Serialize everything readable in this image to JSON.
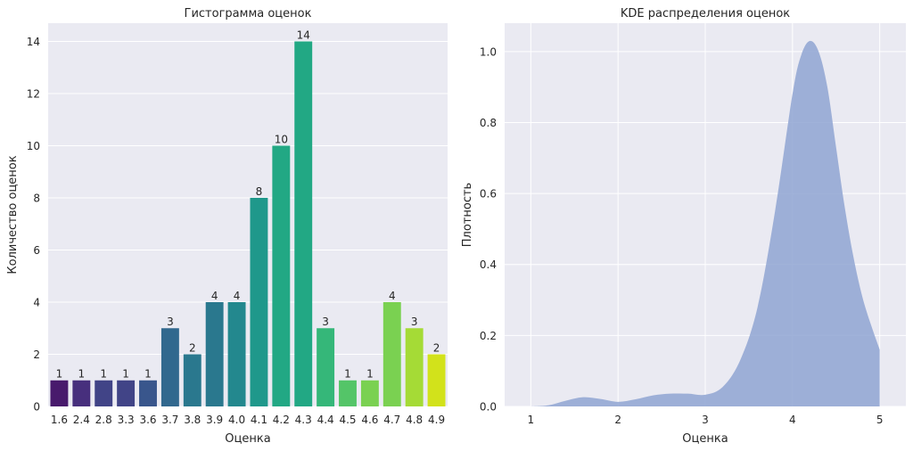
{
  "chart_data": [
    {
      "type": "bar",
      "title": "Гистограмма оценок",
      "xlabel": "Оценка",
      "ylabel": "Количество оценок",
      "categories": [
        "1.6",
        "2.4",
        "2.8",
        "3.3",
        "3.6",
        "3.7",
        "3.8",
        "3.9",
        "4.0",
        "4.1",
        "4.2",
        "4.3",
        "4.4",
        "4.5",
        "4.6",
        "4.7",
        "4.8",
        "4.9"
      ],
      "values": [
        1,
        1,
        1,
        1,
        1,
        3,
        2,
        4,
        4,
        8,
        10,
        14,
        3,
        1,
        1,
        4,
        3,
        2
      ],
      "data_labels": [
        "1",
        "1",
        "1",
        "1",
        "1",
        "3",
        "2",
        "4",
        "4",
        "8",
        "10",
        "14",
        "3",
        "1",
        "1",
        "4",
        "3",
        "2"
      ],
      "ylim": [
        0,
        14.7
      ],
      "yticks": [
        "0",
        "2",
        "4",
        "6",
        "8",
        "10",
        "12",
        "14"
      ],
      "colormap": [
        "#481a6c",
        "#472f7d",
        "#414487",
        "#39568c",
        "#31688e",
        "#2a788e",
        "#23888e",
        "#1f988b",
        "#22a884",
        "#35b779",
        "#54c568",
        "#7ad151",
        "#a5db36",
        "#d2e21b"
      ],
      "grid": true
    },
    {
      "type": "area",
      "title": "KDE распределения оценок",
      "xlabel": "Оценка",
      "ylabel": "Плотность",
      "x": [
        1.0,
        1.2,
        1.4,
        1.6,
        1.8,
        2.0,
        2.2,
        2.4,
        2.6,
        2.8,
        3.0,
        3.2,
        3.4,
        3.6,
        3.8,
        4.0,
        4.1,
        4.2,
        4.3,
        4.4,
        4.5,
        4.6,
        4.7,
        4.8,
        4.9,
        5.0
      ],
      "y": [
        0.0,
        0.003,
        0.016,
        0.026,
        0.021,
        0.013,
        0.02,
        0.031,
        0.036,
        0.036,
        0.033,
        0.055,
        0.13,
        0.28,
        0.55,
        0.88,
        0.99,
        1.03,
        1.0,
        0.9,
        0.73,
        0.56,
        0.42,
        0.31,
        0.23,
        0.16
      ],
      "xlim": [
        0.7,
        5.3
      ],
      "ylim": [
        0,
        1.08
      ],
      "xticks": [
        "1",
        "2",
        "3",
        "4",
        "5"
      ],
      "yticks": [
        "0.0",
        "0.2",
        "0.4",
        "0.6",
        "0.8",
        "1.0"
      ],
      "fill_color": "#8fa5d2",
      "grid": true
    }
  ]
}
